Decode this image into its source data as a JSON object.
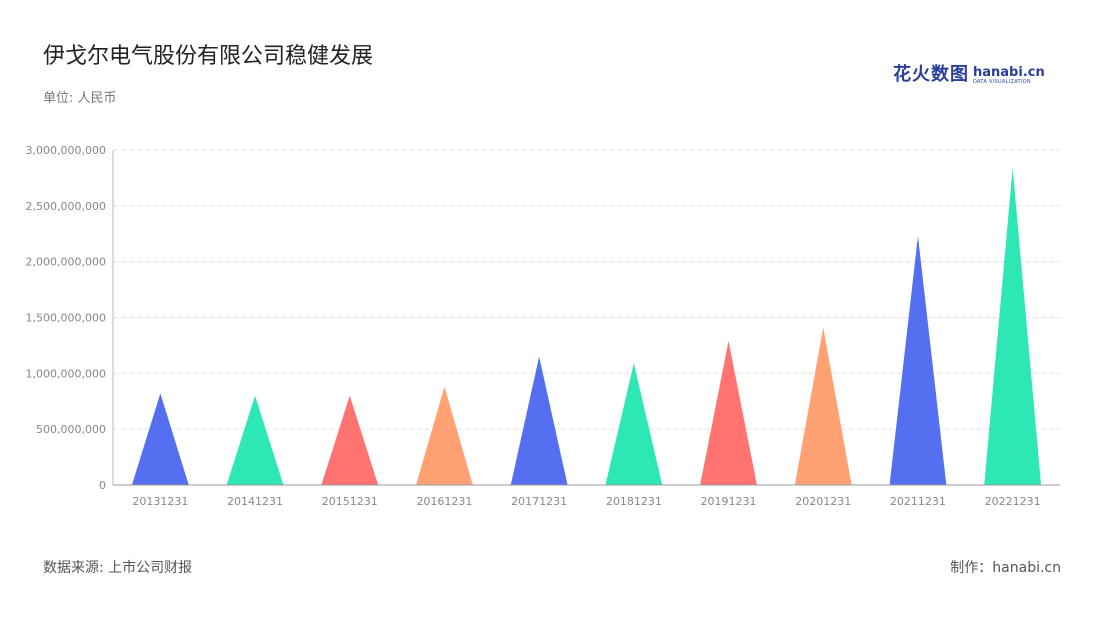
{
  "header": {
    "title": "伊戈尔电气股份有限公司稳健发展",
    "unit": "单位: 人民币"
  },
  "logo": {
    "cn": "花火数图",
    "en": "hanabi.cn",
    "sub": "DATA VISUALIZATION"
  },
  "footer": {
    "source": "数据来源: 上市公司财报",
    "maker": "制作：hanabi.cn"
  },
  "chart_data": {
    "type": "bar",
    "bar_shape": "triangle",
    "categories": [
      "20131231",
      "20141231",
      "20151231",
      "20161231",
      "20171231",
      "20181231",
      "20191231",
      "20201231",
      "20211231",
      "20221231"
    ],
    "values": [
      820000000,
      800000000,
      800000000,
      880000000,
      1150000000,
      1090000000,
      1290000000,
      1410000000,
      2230000000,
      2840000000
    ],
    "colors": [
      "#5470f0",
      "#2de8b4",
      "#ff7470",
      "#ffa172",
      "#5470f0",
      "#2de8b4",
      "#ff7470",
      "#ffa172",
      "#5470f0",
      "#2de8b4"
    ],
    "ylim": [
      0,
      3000000000
    ],
    "yticks": [
      0,
      500000000,
      1000000000,
      1500000000,
      2000000000,
      2500000000,
      3000000000
    ],
    "ytick_labels": [
      "0",
      "500,000,000",
      "1,000,000,000",
      "1,500,000,000",
      "2,000,000,000",
      "2,500,000,000",
      "3,000,000,000"
    ],
    "grid": true,
    "legend": "none",
    "xlabel": "",
    "ylabel": ""
  }
}
